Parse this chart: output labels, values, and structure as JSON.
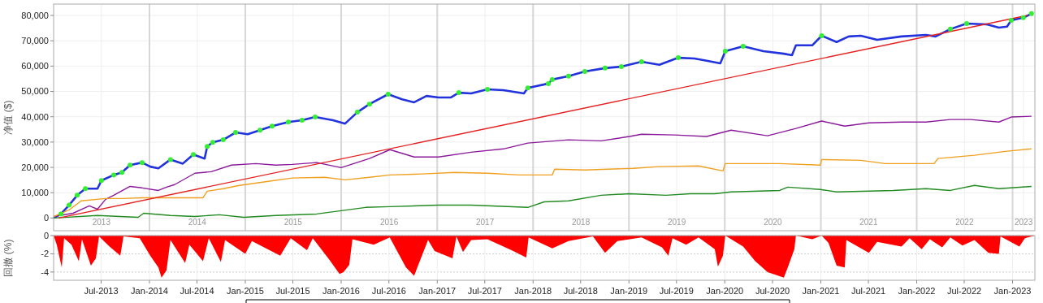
{
  "chart_data": [
    {
      "type": "line",
      "ylabel": "净值 ($)",
      "xlim": [
        "2013-01-01",
        "2023-03-27"
      ],
      "ylim": [
        -5000,
        84500
      ],
      "yticks": [
        0,
        {
          "value": 10000,
          "label": "10,000"
        },
        {
          "value": 20000,
          "label": "20,000"
        },
        {
          "value": 30000,
          "label": "30,000"
        },
        {
          "value": 40000,
          "label": "40,000"
        },
        {
          "value": 50000,
          "label": "50,000"
        },
        {
          "value": 60000,
          "label": "60,000"
        },
        {
          "value": 70000,
          "label": "70,000"
        },
        {
          "value": 80000,
          "label": "80,000"
        }
      ],
      "xticks": [
        {
          "value": "2013-07-02",
          "label": "2013"
        },
        {
          "value": "2014-01-01",
          "label": null
        },
        {
          "value": "2014-07-02",
          "label": "2014"
        },
        {
          "value": "2015-01-01",
          "label": null
        },
        {
          "value": "2015-07-02",
          "label": "2015"
        },
        {
          "value": "2016-01-01",
          "label": null
        },
        {
          "value": "2016-07-02",
          "label": "2016"
        },
        {
          "value": "2017-01-01",
          "label": null
        },
        {
          "value": "2017-07-02",
          "label": "2017"
        },
        {
          "value": "2018-01-01",
          "label": null
        },
        {
          "value": "2018-07-02",
          "label": "2018"
        },
        {
          "value": "2019-01-01",
          "label": null
        },
        {
          "value": "2019-07-02",
          "label": "2019"
        },
        {
          "value": "2020-01-01",
          "label": null
        },
        {
          "value": "2020-07-02",
          "label": "2020"
        },
        {
          "value": "2021-01-01",
          "label": null
        },
        {
          "value": "2021-07-02",
          "label": "2021"
        },
        {
          "value": "2022-01-01",
          "label": null
        },
        {
          "value": "2022-07-02",
          "label": "2022"
        },
        {
          "value": "2023-01-01",
          "label": null
        },
        {
          "value": "2023-02-12",
          "label": "2023"
        }
      ],
      "grid": true,
      "series": [
        {
          "color": "#2233dd",
          "x": [
            "2013-01-01",
            "2013-01-29",
            "2013-03-01",
            "2013-04-01",
            "2013-05-02",
            "2013-06-17",
            "2013-07-02",
            "2013-08-18",
            "2013-09-18",
            "2013-10-19",
            "2013-12-04",
            "2014-01-04",
            "2014-02-04",
            "2014-03-22",
            "2014-05-08",
            "2014-06-17",
            "2014-07-30",
            "2014-08-09",
            "2014-08-30",
            "2014-10-09",
            "2014-11-25",
            "2015-01-10",
            "2015-02-26",
            "2015-04-13",
            "2015-06-14",
            "2015-08-05",
            "2015-09-24",
            "2015-12-01",
            "2016-01-16",
            "2016-03-03",
            "2016-04-18",
            "2016-06-28",
            "2016-08-20",
            "2016-10-05",
            "2016-11-21",
            "2017-01-06",
            "2017-02-21",
            "2017-03-24",
            "2017-05-10",
            "2017-07-11",
            "2017-09-10",
            "2017-11-27",
            "2017-12-12",
            "2018-02-28",
            "2018-03-15",
            "2018-05-16",
            "2018-07-17",
            "2018-10-02",
            "2018-12-03",
            "2019-02-18",
            "2019-04-27",
            "2019-07-08",
            "2019-09-07",
            "2019-10-24",
            "2019-12-15",
            "2020-01-03",
            "2020-03-11",
            "2020-05-27",
            "2020-08-13",
            "2020-09-13",
            "2020-09-28",
            "2020-11-29",
            "2021-01-04",
            "2021-03-02",
            "2021-04-17",
            "2021-06-02",
            "2021-08-03",
            "2021-11-04",
            "2022-02-05",
            "2022-03-14",
            "2022-05-09",
            "2022-07-10",
            "2022-09-25",
            "2022-11-10",
            "2022-12-11",
            "2022-12-27",
            "2023-02-11",
            "2023-03-14"
          ],
          "values": [
            0,
            1600,
            5100,
            9000,
            11600,
            11600,
            14800,
            17000,
            18000,
            20900,
            21900,
            20300,
            19600,
            23100,
            21500,
            25100,
            23500,
            28300,
            29900,
            30900,
            33800,
            33100,
            34700,
            36300,
            37900,
            38600,
            39900,
            38600,
            37300,
            41800,
            45000,
            48900,
            46900,
            45700,
            48200,
            47600,
            47600,
            49500,
            49200,
            50800,
            50500,
            49200,
            51400,
            53100,
            54700,
            56000,
            57900,
            59200,
            59800,
            61700,
            60500,
            63300,
            63000,
            62100,
            61100,
            65900,
            67800,
            65900,
            64900,
            64300,
            68200,
            68200,
            72000,
            69500,
            71700,
            72000,
            70400,
            71700,
            72300,
            71700,
            74600,
            76800,
            76500,
            75200,
            75600,
            78100,
            79100,
            80700
          ]
        },
        {
          "color": "#8b1a9b",
          "x": [
            "2013-01-01",
            "2013-03-16",
            "2013-05-17",
            "2013-06-17",
            "2013-07-18",
            "2013-08-18",
            "2013-10-19",
            "2013-12-04",
            "2014-02-04",
            "2014-03-07",
            "2014-04-07",
            "2014-06-23",
            "2014-08-24",
            "2014-11-09",
            "2015-02-10",
            "2015-04-28",
            "2015-06-29",
            "2015-09-30",
            "2016-01-01",
            "2016-04-18",
            "2016-07-05",
            "2016-10-05",
            "2017-01-06",
            "2017-05-10",
            "2017-09-10",
            "2017-12-12",
            "2018-05-16",
            "2018-09-17",
            "2019-01-03",
            "2019-02-18",
            "2019-06-22",
            "2019-10-24",
            "2020-01-25",
            "2020-06-12",
            "2020-09-28",
            "2021-01-04",
            "2021-04-02",
            "2021-07-03",
            "2021-11-04",
            "2022-02-05",
            "2022-05-09",
            "2022-07-25",
            "2022-11-10",
            "2022-12-27",
            "2023-03-14"
          ],
          "values": [
            600,
            1900,
            4800,
            3500,
            7400,
            9000,
            12500,
            11900,
            10900,
            12200,
            13200,
            17700,
            18300,
            20900,
            21500,
            20900,
            21200,
            21900,
            19900,
            23500,
            27000,
            24100,
            24100,
            26000,
            27300,
            29600,
            30900,
            30500,
            32200,
            33100,
            32800,
            32200,
            34700,
            32500,
            35400,
            38300,
            36300,
            37600,
            37900,
            37900,
            38900,
            38900,
            37900,
            39900,
            40200
          ]
        },
        {
          "color": "#f0a020",
          "x": [
            "2013-01-01",
            "2013-03-01",
            "2013-04-16",
            "2013-07-18",
            "2013-09-18",
            "2013-12-04",
            "2014-07-24",
            "2014-08-09",
            "2014-10-09",
            "2014-12-10",
            "2015-03-29",
            "2015-06-29",
            "2015-10-31",
            "2016-01-16",
            "2016-04-18",
            "2016-07-05",
            "2016-11-05",
            "2017-03-09",
            "2017-07-11",
            "2017-11-11",
            "2018-03-15",
            "2018-03-24",
            "2018-07-17",
            "2019-01-18",
            "2019-04-21",
            "2019-09-23",
            "2019-12-25",
            "2020-01-03",
            "2020-07-28",
            "2020-12-30",
            "2021-01-04",
            "2021-06-02",
            "2021-09-03",
            "2022-03-08",
            "2022-03-23",
            "2022-08-09",
            "2022-12-11",
            "2023-03-14"
          ],
          "values": [
            600,
            3200,
            6800,
            7700,
            7700,
            8000,
            8000,
            10600,
            11600,
            12900,
            14500,
            15800,
            16100,
            15100,
            16100,
            17000,
            17400,
            18000,
            17700,
            17000,
            17000,
            19300,
            19000,
            19600,
            20300,
            20600,
            18600,
            21500,
            21500,
            20900,
            23100,
            22800,
            21500,
            21500,
            23500,
            24800,
            26400,
            27300
          ]
        },
        {
          "color": "#228b22",
          "x": [
            "2013-01-01",
            "2013-06-17",
            "2013-11-19",
            "2013-12-10",
            "2014-03-22",
            "2014-06-23",
            "2014-09-24",
            "2014-12-26",
            "2015-04-28",
            "2015-09-30",
            "2016-01-01",
            "2016-04-03",
            "2016-07-05",
            "2017-01-06",
            "2017-05-10",
            "2017-12-12",
            "2018-02-12",
            "2018-05-16",
            "2018-09-17",
            "2019-01-03",
            "2019-05-22",
            "2019-08-23",
            "2019-11-24",
            "2020-01-25",
            "2020-07-28",
            "2020-08-28",
            "2020-12-30",
            "2021-03-02",
            "2021-10-04",
            "2022-02-05",
            "2022-05-09",
            "2022-08-09",
            "2022-11-10",
            "2023-03-14"
          ],
          "values": [
            0,
            1000,
            300,
            1900,
            1000,
            600,
            1300,
            300,
            1000,
            1600,
            2900,
            4200,
            4500,
            5100,
            5100,
            4200,
            6400,
            6800,
            9000,
            9600,
            9000,
            9600,
            9600,
            10300,
            10900,
            12200,
            11300,
            10300,
            10900,
            11600,
            10900,
            12900,
            11600,
            12500
          ]
        },
        {
          "color": "#e52020",
          "x": [
            "2013-01-20",
            "2023-02-26"
          ],
          "values": [
            0,
            80000
          ]
        },
        {
          "type": "scatter",
          "marker": "circle",
          "color": "#33ee33",
          "x": [
            "2013-01-29",
            "2013-03-01",
            "2013-04-01",
            "2013-05-02",
            "2013-07-02",
            "2013-08-18",
            "2013-09-18",
            "2013-10-19",
            "2013-12-04",
            "2014-03-22",
            "2014-06-17",
            "2014-08-09",
            "2014-08-30",
            "2014-10-09",
            "2014-11-25",
            "2015-02-26",
            "2015-04-13",
            "2015-06-14",
            "2015-08-05",
            "2015-09-24",
            "2016-03-03",
            "2016-04-18",
            "2016-06-28",
            "2017-03-24",
            "2017-07-11",
            "2017-12-12",
            "2018-02-28",
            "2018-03-15",
            "2018-05-16",
            "2018-07-17",
            "2018-10-02",
            "2018-12-03",
            "2019-02-18",
            "2019-07-08",
            "2020-01-03",
            "2020-03-11",
            "2021-01-04",
            "2022-05-09",
            "2022-07-10",
            "2022-12-27",
            "2023-02-11",
            "2023-03-14"
          ],
          "values": [
            1600,
            5100,
            9000,
            11600,
            14800,
            17000,
            18000,
            20900,
            21900,
            23100,
            25100,
            28300,
            29900,
            30900,
            33800,
            34700,
            36300,
            37900,
            38600,
            39900,
            41800,
            45000,
            48900,
            49500,
            50800,
            51400,
            53100,
            54700,
            56000,
            57900,
            59200,
            59800,
            61700,
            63300,
            65900,
            67800,
            72000,
            74600,
            76800,
            78100,
            79100,
            80700
          ]
        }
      ]
    },
    {
      "type": "area",
      "ylabel": "回撤 (%)",
      "xlim": [
        "2013-01-01",
        "2023-03-27"
      ],
      "ylim": [
        -4.9,
        0
      ],
      "yticks": [
        0,
        -2,
        -4
      ],
      "xticks": [
        {
          "value": "2013-07-01",
          "label": "Jul-2013"
        },
        {
          "value": "2014-01-01",
          "label": "Jan-2014"
        },
        {
          "value": "2014-07-01",
          "label": "Jul-2014"
        },
        {
          "value": "2015-01-01",
          "label": "Jan-2015"
        },
        {
          "value": "2015-07-01",
          "label": "Jul-2015"
        },
        {
          "value": "2016-01-01",
          "label": "Jan-2016"
        },
        {
          "value": "2016-07-01",
          "label": "Jul-2016"
        },
        {
          "value": "2017-01-01",
          "label": "Jan-2017"
        },
        {
          "value": "2017-07-01",
          "label": "Jul-2017"
        },
        {
          "value": "2018-01-01",
          "label": "Jan-2018"
        },
        {
          "value": "2018-07-01",
          "label": "Jul-2018"
        },
        {
          "value": "2019-01-01",
          "label": "Jan-2019"
        },
        {
          "value": "2019-07-01",
          "label": "Jul-2019"
        },
        {
          "value": "2020-01-01",
          "label": "Jan-2020"
        },
        {
          "value": "2020-07-01",
          "label": "Jul-2020"
        },
        {
          "value": "2021-01-01",
          "label": "Jan-2021"
        },
        {
          "value": "2021-07-01",
          "label": "Jul-2021"
        },
        {
          "value": "2022-01-01",
          "label": "Jan-2022"
        },
        {
          "value": "2022-07-01",
          "label": "Jul-2022"
        },
        {
          "value": "2023-01-01",
          "label": "Jan-2023"
        }
      ],
      "grid": true,
      "series": [
        {
          "color": "#ff0000",
          "x": [
            "2013-01-01",
            "2013-01-13",
            "2013-02-01",
            "2013-02-10",
            "2013-03-10",
            "2013-04-07",
            "2013-04-19",
            "2013-05-23",
            "2013-06-11",
            "2013-06-23",
            "2013-08-02",
            "2013-09-12",
            "2013-09-24",
            "2013-11-25",
            "2014-01-04",
            "2014-02-04",
            "2014-02-16",
            "2014-03-07",
            "2014-03-22",
            "2014-05-17",
            "2014-06-02",
            "2014-07-24",
            "2014-08-15",
            "2014-09-30",
            "2014-10-16",
            "2015-01-01",
            "2015-01-26",
            "2015-05-14",
            "2015-06-23",
            "2015-08-24",
            "2015-09-15",
            "2015-11-16",
            "2015-12-26",
            "2016-01-10",
            "2016-02-01",
            "2016-02-13",
            "2016-05-04",
            "2016-07-04",
            "2016-09-04",
            "2016-10-05",
            "2016-10-21",
            "2016-11-27",
            "2016-12-22",
            "2017-02-28",
            "2017-03-15",
            "2017-04-09",
            "2017-05-10",
            "2017-07-11",
            "2017-10-11",
            "2017-12-06",
            "2017-12-15",
            "2018-03-15",
            "2018-05-16",
            "2018-08-17",
            "2018-10-02",
            "2018-11-18",
            "2019-02-18",
            "2019-05-07",
            "2019-05-31",
            "2019-06-16",
            "2019-08-07",
            "2019-09-23",
            "2019-11-24",
            "2019-12-06",
            "2019-12-25",
            "2020-01-03",
            "2020-03-11",
            "2020-04-26",
            "2020-06-12",
            "2020-08-13",
            "2020-08-28",
            "2020-09-22",
            "2020-09-28",
            "2020-11-29",
            "2021-01-04",
            "2021-01-30",
            "2021-03-02",
            "2021-04-02",
            "2021-04-08",
            "2021-07-03",
            "2021-08-03",
            "2021-11-04",
            "2021-12-05",
            "2022-01-20",
            "2022-02-20",
            "2022-04-08",
            "2022-05-09",
            "2022-06-24",
            "2022-08-09",
            "2022-10-01",
            "2022-11-10",
            "2022-11-16",
            "2023-01-27",
            "2023-02-17",
            "2023-03-27"
          ],
          "values": [
            0,
            -1,
            -3.5,
            -0.3,
            -1,
            -2.8,
            -0.4,
            -3.3,
            -2.5,
            -0.1,
            -1.2,
            -2.2,
            -0.1,
            -0.3,
            -2.2,
            -3.5,
            -4.6,
            -3.8,
            -0.5,
            -3,
            -1,
            -2.8,
            -0.3,
            -2.9,
            -0.5,
            -2,
            -0.6,
            -2.2,
            -0.3,
            -1.6,
            -0.3,
            -2.6,
            -4.2,
            -4,
            -3.2,
            -0.4,
            -1,
            -0.2,
            -3.5,
            -4.4,
            -3.2,
            -0.5,
            -1.7,
            -2.5,
            -0.1,
            -1.8,
            -0.5,
            -0.4,
            -1.6,
            -2.4,
            -0.2,
            -1.4,
            -0.6,
            -0.1,
            -1.9,
            -0.6,
            -0.2,
            -1.3,
            -2.2,
            -0.3,
            -1,
            -0.2,
            -1.5,
            -3.4,
            -2.2,
            0,
            -1.2,
            -2.8,
            -4,
            -4.6,
            -3.5,
            -1.5,
            0,
            -0.4,
            0,
            -0.8,
            -3.3,
            -3.5,
            -0.5,
            -1.9,
            -0.7,
            -1.2,
            -0.3,
            -1.5,
            -0.4,
            -1.3,
            -0.2,
            -1.1,
            -0.5,
            -1.9,
            -2,
            -0.1,
            -1.2,
            -0.3,
            0
          ]
        }
      ]
    }
  ]
}
